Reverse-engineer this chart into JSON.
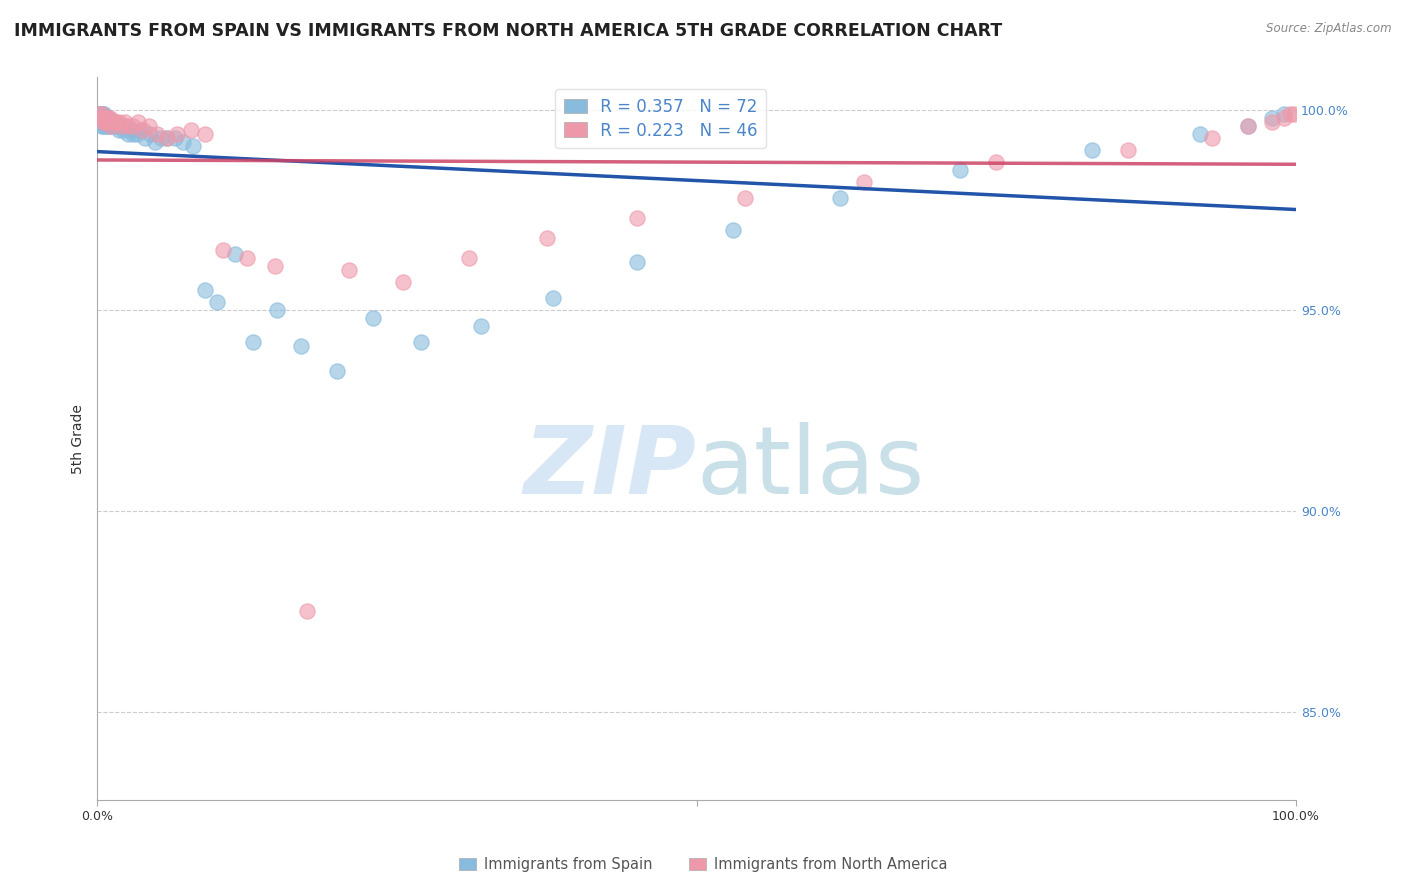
{
  "title": "IMMIGRANTS FROM SPAIN VS IMMIGRANTS FROM NORTH AMERICA 5TH GRADE CORRELATION CHART",
  "source_text": "Source: ZipAtlas.com",
  "ylabel": "5th Grade",
  "xlabel_blue": "Immigrants from Spain",
  "xlabel_pink": "Immigrants from North America",
  "legend_blue_R": 0.357,
  "legend_blue_N": 72,
  "legend_pink_R": 0.223,
  "legend_pink_N": 46,
  "blue_color": "#88bbdd",
  "pink_color": "#ee99aa",
  "trendline_blue": "#2255aa",
  "trendline_pink": "#cc4466",
  "watermark_zip": "ZIP",
  "watermark_atlas": "atlas",
  "xlim": [
    0.0,
    1.0
  ],
  "ylim": [
    0.828,
    1.008
  ],
  "yticks": [
    0.85,
    0.9,
    0.95,
    1.0
  ],
  "ytick_labels": [
    "85.0%",
    "90.0%",
    "95.0%",
    "100.0%"
  ],
  "background_color": "#ffffff",
  "grid_color": "#cccccc",
  "right_label_color": "#4a86c8",
  "title_fontsize": 12.5,
  "axis_label_fontsize": 10,
  "tick_fontsize": 9,
  "legend_fontsize": 12,
  "blue_x": [
    0.001,
    0.002,
    0.002,
    0.003,
    0.003,
    0.003,
    0.004,
    0.004,
    0.004,
    0.004,
    0.005,
    0.005,
    0.005,
    0.005,
    0.006,
    0.006,
    0.006,
    0.007,
    0.007,
    0.007,
    0.008,
    0.008,
    0.009,
    0.009,
    0.01,
    0.01,
    0.011,
    0.011,
    0.012,
    0.013,
    0.014,
    0.015,
    0.016,
    0.017,
    0.018,
    0.019,
    0.02,
    0.022,
    0.024,
    0.026,
    0.028,
    0.03,
    0.033,
    0.036,
    0.04,
    0.044,
    0.048,
    0.053,
    0.058,
    0.065,
    0.072,
    0.08,
    0.09,
    0.1,
    0.115,
    0.13,
    0.15,
    0.17,
    0.2,
    0.23,
    0.27,
    0.32,
    0.38,
    0.45,
    0.53,
    0.62,
    0.72,
    0.83,
    0.92,
    0.96,
    0.98,
    0.99
  ],
  "blue_y": [
    0.999,
    0.999,
    0.998,
    0.999,
    0.998,
    0.997,
    0.999,
    0.998,
    0.997,
    0.996,
    0.999,
    0.998,
    0.997,
    0.996,
    0.999,
    0.998,
    0.997,
    0.998,
    0.997,
    0.996,
    0.998,
    0.997,
    0.998,
    0.996,
    0.997,
    0.996,
    0.997,
    0.996,
    0.997,
    0.997,
    0.996,
    0.997,
    0.996,
    0.996,
    0.995,
    0.996,
    0.996,
    0.995,
    0.996,
    0.994,
    0.995,
    0.994,
    0.994,
    0.995,
    0.993,
    0.994,
    0.992,
    0.993,
    0.993,
    0.993,
    0.992,
    0.991,
    0.955,
    0.952,
    0.964,
    0.942,
    0.95,
    0.941,
    0.935,
    0.948,
    0.942,
    0.946,
    0.953,
    0.962,
    0.97,
    0.978,
    0.985,
    0.99,
    0.994,
    0.996,
    0.998,
    0.999
  ],
  "pink_x": [
    0.002,
    0.003,
    0.004,
    0.005,
    0.005,
    0.006,
    0.007,
    0.008,
    0.009,
    0.01,
    0.011,
    0.012,
    0.014,
    0.016,
    0.018,
    0.02,
    0.023,
    0.026,
    0.03,
    0.034,
    0.038,
    0.043,
    0.05,
    0.058,
    0.067,
    0.078,
    0.09,
    0.105,
    0.125,
    0.148,
    0.175,
    0.21,
    0.255,
    0.31,
    0.375,
    0.45,
    0.54,
    0.64,
    0.75,
    0.86,
    0.93,
    0.96,
    0.98,
    0.99,
    0.995,
    0.998
  ],
  "pink_y": [
    0.999,
    0.998,
    0.999,
    0.998,
    0.997,
    0.998,
    0.997,
    0.997,
    0.998,
    0.997,
    0.998,
    0.996,
    0.997,
    0.997,
    0.997,
    0.996,
    0.997,
    0.996,
    0.996,
    0.997,
    0.995,
    0.996,
    0.994,
    0.993,
    0.994,
    0.995,
    0.994,
    0.965,
    0.963,
    0.961,
    0.875,
    0.96,
    0.957,
    0.963,
    0.968,
    0.973,
    0.978,
    0.982,
    0.987,
    0.99,
    0.993,
    0.996,
    0.997,
    0.998,
    0.999,
    0.999
  ]
}
